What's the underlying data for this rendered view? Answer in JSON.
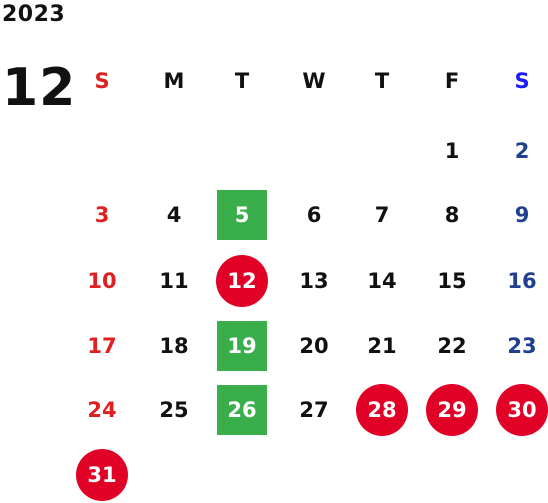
{
  "calendar": {
    "year": "2023",
    "month": "12",
    "weekdays": [
      {
        "label": "S",
        "kind": "sun"
      },
      {
        "label": "M",
        "kind": "wk"
      },
      {
        "label": "T",
        "kind": "wk"
      },
      {
        "label": "W",
        "kind": "wk"
      },
      {
        "label": "T",
        "kind": "wk"
      },
      {
        "label": "F",
        "kind": "wk"
      },
      {
        "label": "S",
        "kind": "sat"
      }
    ],
    "weeks": [
      [
        null,
        null,
        null,
        null,
        null,
        {
          "d": "1"
        },
        {
          "d": "2"
        }
      ],
      [
        {
          "d": "3"
        },
        {
          "d": "4"
        },
        {
          "d": "5",
          "mark": "event"
        },
        {
          "d": "6"
        },
        {
          "d": "7"
        },
        {
          "d": "8"
        },
        {
          "d": "9"
        }
      ],
      [
        {
          "d": "10"
        },
        {
          "d": "11"
        },
        {
          "d": "12",
          "mark": "holiday"
        },
        {
          "d": "13"
        },
        {
          "d": "14"
        },
        {
          "d": "15"
        },
        {
          "d": "16"
        }
      ],
      [
        {
          "d": "17"
        },
        {
          "d": "18"
        },
        {
          "d": "19",
          "mark": "event"
        },
        {
          "d": "20"
        },
        {
          "d": "21"
        },
        {
          "d": "22"
        },
        {
          "d": "23"
        }
      ],
      [
        {
          "d": "24"
        },
        {
          "d": "25"
        },
        {
          "d": "26",
          "mark": "event"
        },
        {
          "d": "27"
        },
        {
          "d": "28",
          "mark": "holiday"
        },
        {
          "d": "29",
          "mark": "holiday"
        },
        {
          "d": "30",
          "mark": "holiday"
        }
      ],
      [
        {
          "d": "31",
          "mark": "holiday"
        },
        null,
        null,
        null,
        null,
        null,
        null
      ]
    ],
    "colors": {
      "sunday": "#e02020",
      "saturday": "#1f3f8f",
      "saturday_header": "#1a1aff",
      "holiday_badge": "#e10026",
      "event_badge": "#3aae4a"
    }
  }
}
